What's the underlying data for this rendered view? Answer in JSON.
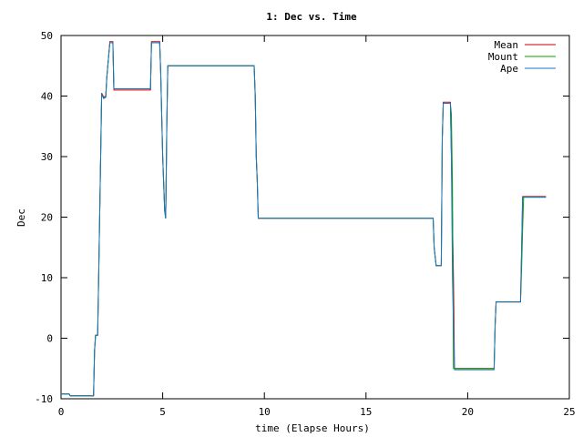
{
  "chart_data": {
    "type": "line",
    "title": "1: Dec vs. Time",
    "xlabel": "time (Elapse Hours)",
    "ylabel": "Dec",
    "xlim": [
      0,
      25
    ],
    "ylim": [
      -10,
      50
    ],
    "xticks": [
      0,
      5,
      10,
      15,
      20,
      25
    ],
    "yticks": [
      -10,
      0,
      10,
      20,
      30,
      40,
      50
    ],
    "grid": false,
    "legend_position": "top-right",
    "series": [
      {
        "name": "Mean",
        "color": "#cc0000",
        "points": [
          [
            0,
            -9.2
          ],
          [
            0.4,
            -9.2
          ],
          [
            0.45,
            -9.5
          ],
          [
            1.6,
            -9.5
          ],
          [
            1.65,
            -2
          ],
          [
            1.7,
            0.5
          ],
          [
            1.8,
            0.5
          ],
          [
            1.85,
            10
          ],
          [
            1.95,
            30
          ],
          [
            2.0,
            40.5
          ],
          [
            2.1,
            39.8
          ],
          [
            2.2,
            40
          ],
          [
            2.25,
            43
          ],
          [
            2.35,
            47
          ],
          [
            2.4,
            49
          ],
          [
            2.55,
            49
          ],
          [
            2.6,
            41
          ],
          [
            4.4,
            41
          ],
          [
            4.45,
            49
          ],
          [
            4.85,
            49
          ],
          [
            4.9,
            44
          ],
          [
            5.0,
            30
          ],
          [
            5.1,
            21
          ],
          [
            5.15,
            19.8
          ],
          [
            5.2,
            35
          ],
          [
            5.25,
            45
          ],
          [
            9.5,
            45
          ],
          [
            9.55,
            40
          ],
          [
            9.6,
            30
          ],
          [
            9.65,
            26
          ],
          [
            9.7,
            19.8
          ],
          [
            18.0,
            19.8
          ],
          [
            18.3,
            19.8
          ],
          [
            18.35,
            15
          ],
          [
            18.45,
            12
          ],
          [
            18.7,
            12
          ],
          [
            18.75,
            33
          ],
          [
            18.8,
            39
          ],
          [
            19.15,
            39
          ],
          [
            19.2,
            30
          ],
          [
            19.3,
            10
          ],
          [
            19.35,
            -5
          ],
          [
            21.3,
            -5
          ],
          [
            21.35,
            2
          ],
          [
            21.4,
            6
          ],
          [
            22.6,
            6
          ],
          [
            22.65,
            14
          ],
          [
            22.7,
            23.4
          ],
          [
            23.85,
            23.4
          ]
        ]
      },
      {
        "name": "Mount",
        "color": "#00a000",
        "points": [
          [
            0,
            -9.2
          ],
          [
            0.4,
            -9.2
          ],
          [
            0.45,
            -9.5
          ],
          [
            1.6,
            -9.5
          ],
          [
            1.65,
            -2
          ],
          [
            1.7,
            0.5
          ],
          [
            1.8,
            0.5
          ],
          [
            1.85,
            10
          ],
          [
            1.95,
            30
          ],
          [
            2.0,
            40.3
          ],
          [
            2.1,
            39.6
          ],
          [
            2.2,
            39.8
          ],
          [
            2.25,
            43
          ],
          [
            2.35,
            47
          ],
          [
            2.4,
            48.8
          ],
          [
            2.55,
            48.8
          ],
          [
            2.6,
            41.2
          ],
          [
            4.4,
            41.2
          ],
          [
            4.45,
            48.8
          ],
          [
            4.85,
            48.8
          ],
          [
            4.9,
            44
          ],
          [
            5.0,
            30
          ],
          [
            5.1,
            21
          ],
          [
            5.15,
            19.8
          ],
          [
            5.2,
            35
          ],
          [
            5.25,
            45
          ],
          [
            9.5,
            45
          ],
          [
            9.55,
            40
          ],
          [
            9.6,
            30
          ],
          [
            9.65,
            26
          ],
          [
            9.7,
            19.8
          ],
          [
            18.0,
            19.8
          ],
          [
            18.3,
            19.8
          ],
          [
            18.35,
            15
          ],
          [
            18.45,
            12
          ],
          [
            18.7,
            12
          ],
          [
            18.75,
            33
          ],
          [
            18.8,
            38.8
          ],
          [
            19.15,
            38.8
          ],
          [
            19.2,
            37
          ],
          [
            19.25,
            25
          ],
          [
            19.3,
            -5
          ],
          [
            21.3,
            -5
          ],
          [
            21.35,
            2
          ],
          [
            21.4,
            6
          ],
          [
            22.6,
            6
          ],
          [
            22.65,
            11
          ],
          [
            22.7,
            18
          ],
          [
            22.75,
            23.3
          ],
          [
            23.85,
            23.3
          ]
        ]
      },
      {
        "name": "Ape",
        "color": "#1a75c8",
        "points": [
          [
            0,
            -9.2
          ],
          [
            0.4,
            -9.2
          ],
          [
            0.45,
            -9.5
          ],
          [
            1.6,
            -9.5
          ],
          [
            1.65,
            -2
          ],
          [
            1.7,
            0.5
          ],
          [
            1.8,
            0.5
          ],
          [
            1.85,
            10
          ],
          [
            1.95,
            30
          ],
          [
            2.0,
            40.3
          ],
          [
            2.1,
            39.6
          ],
          [
            2.2,
            39.8
          ],
          [
            2.25,
            43
          ],
          [
            2.35,
            47
          ],
          [
            2.4,
            48.8
          ],
          [
            2.55,
            48.8
          ],
          [
            2.6,
            41.2
          ],
          [
            4.4,
            41.2
          ],
          [
            4.45,
            48.8
          ],
          [
            4.85,
            48.8
          ],
          [
            4.9,
            44
          ],
          [
            5.0,
            30
          ],
          [
            5.1,
            21
          ],
          [
            5.15,
            19.8
          ],
          [
            5.2,
            35
          ],
          [
            5.25,
            45
          ],
          [
            9.5,
            45
          ],
          [
            9.55,
            40
          ],
          [
            9.6,
            30
          ],
          [
            9.65,
            26
          ],
          [
            9.7,
            19.8
          ],
          [
            18.0,
            19.8
          ],
          [
            18.3,
            19.8
          ],
          [
            18.35,
            15
          ],
          [
            18.45,
            12
          ],
          [
            18.7,
            12
          ],
          [
            18.75,
            33
          ],
          [
            18.8,
            38.8
          ],
          [
            19.15,
            38.8
          ],
          [
            19.2,
            30
          ],
          [
            19.25,
            10
          ],
          [
            19.35,
            -5.2
          ],
          [
            21.3,
            -5.2
          ],
          [
            21.35,
            2
          ],
          [
            21.4,
            6
          ],
          [
            22.6,
            6
          ],
          [
            22.65,
            14
          ],
          [
            22.7,
            23.3
          ],
          [
            23.85,
            23.3
          ]
        ]
      }
    ]
  }
}
